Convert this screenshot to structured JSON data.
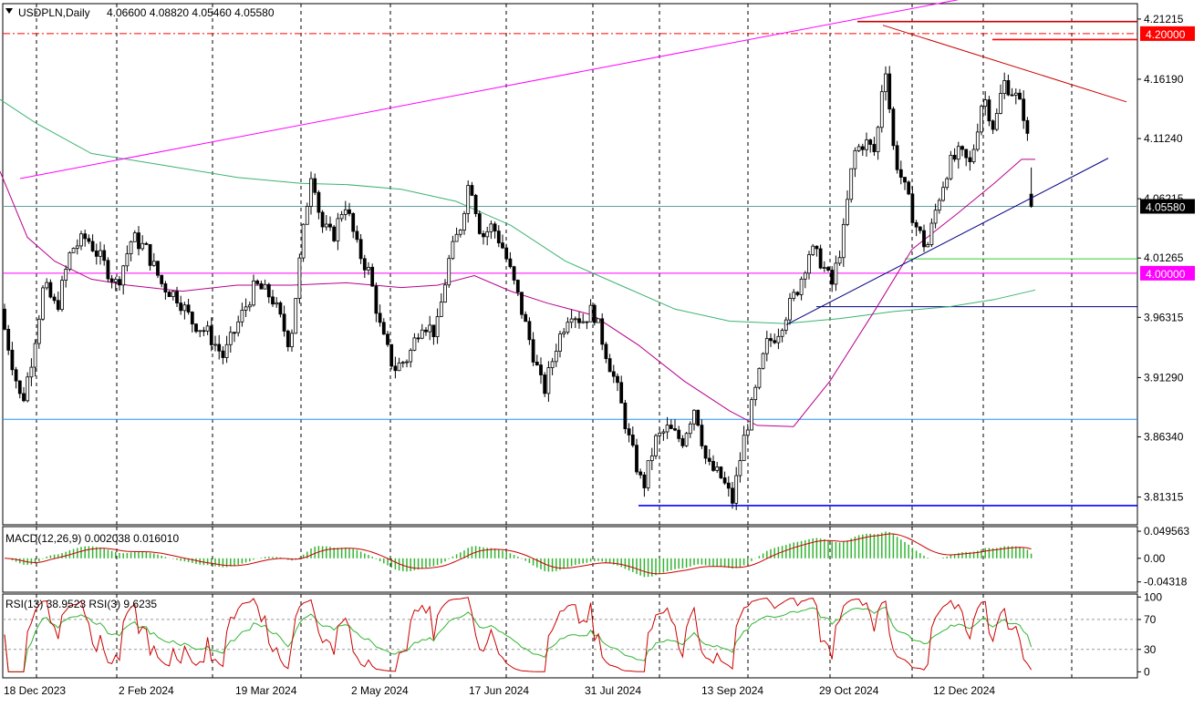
{
  "header": {
    "symbol_label": "USDPLN,Daily",
    "ohlc": "4.06600 4.08820 4.05460 4.05580"
  },
  "chart_data": {
    "type": "candlestick",
    "title": "USDPLN,Daily",
    "open": 4.066,
    "high": 4.0882,
    "low": 4.0546,
    "close": 4.0558,
    "price_axis": {
      "ylim": [
        3.79,
        4.225
      ],
      "ticks": [
        "4.21215",
        "4.16190",
        "4.11240",
        "4.06215",
        "4.01265",
        "3.96315",
        "3.91290",
        "3.86340",
        "3.81315"
      ],
      "tick_values": [
        4.21215,
        4.1619,
        4.1124,
        4.06215,
        4.01265,
        3.96315,
        3.9129,
        3.8634,
        3.81315
      ]
    },
    "price_labels": [
      {
        "text": "4.20000",
        "value": 4.2,
        "color": "#ff0000"
      },
      {
        "text": "4.05580",
        "value": 4.0558,
        "color": "#000000"
      },
      {
        "text": "4.00000",
        "value": 4.0,
        "color": "#ff00ff"
      }
    ],
    "x_labels": [
      "18 Dec 2023",
      "2 Feb 2024",
      "19 Mar 2024",
      "2 May 2024",
      "17 Jun 2024",
      "31 Jul 2024",
      "13 Sep 2024",
      "29 Oct 2024",
      "12 Dec 2024"
    ],
    "levels": [
      {
        "value": 4.2,
        "color": "#ff0000",
        "style": "dash-dot"
      },
      {
        "value": 4.21,
        "color": "#cc0000",
        "style": "solid"
      },
      {
        "value": 4.195,
        "color": "#ff0000",
        "style": "solid"
      },
      {
        "value": 4.0,
        "color": "#ff00ff",
        "style": "solid"
      },
      {
        "value": 4.0558,
        "color": "#5f9ea0",
        "style": "solid"
      },
      {
        "value": 4.012,
        "color": "#32cd32",
        "style": "solid"
      },
      {
        "value": 3.972,
        "color": "#000080",
        "style": "solid"
      },
      {
        "value": 3.878,
        "color": "#1e90ff",
        "style": "solid"
      },
      {
        "value": 3.806,
        "color": "#0000ff",
        "style": "solid"
      }
    ],
    "series_path": [
      [
        0,
        3.97
      ],
      [
        12,
        3.93
      ],
      [
        24,
        3.89
      ],
      [
        35,
        3.93
      ],
      [
        48,
        3.99
      ],
      [
        62,
        3.97
      ],
      [
        78,
        4.02
      ],
      [
        95,
        4.03
      ],
      [
        112,
        4.01
      ],
      [
        128,
        3.99
      ],
      [
        145,
        4.03
      ],
      [
        160,
        4.02
      ],
      [
        178,
        3.99
      ],
      [
        195,
        3.98
      ],
      [
        210,
        3.96
      ],
      [
        228,
        3.95
      ],
      [
        245,
        3.93
      ],
      [
        262,
        3.96
      ],
      [
        280,
        3.99
      ],
      [
        298,
        3.98
      ],
      [
        318,
        3.94
      ],
      [
        330,
        4.02
      ],
      [
        342,
        4.09
      ],
      [
        352,
        4.04
      ],
      [
        365,
        4.03
      ],
      [
        378,
        4.06
      ],
      [
        392,
        4.02
      ],
      [
        405,
        4.0
      ],
      [
        418,
        3.95
      ],
      [
        432,
        3.92
      ],
      [
        448,
        3.93
      ],
      [
        462,
        3.96
      ],
      [
        478,
        3.95
      ],
      [
        492,
        4.01
      ],
      [
        505,
        4.04
      ],
      [
        515,
        4.08
      ],
      [
        528,
        4.03
      ],
      [
        540,
        4.04
      ],
      [
        552,
        4.02
      ],
      [
        568,
        3.98
      ],
      [
        582,
        3.94
      ],
      [
        596,
        3.9
      ],
      [
        610,
        3.94
      ],
      [
        625,
        3.97
      ],
      [
        638,
        3.96
      ],
      [
        650,
        3.97
      ],
      [
        662,
        3.94
      ],
      [
        678,
        3.9
      ],
      [
        690,
        3.86
      ],
      [
        705,
        3.82
      ],
      [
        718,
        3.86
      ],
      [
        732,
        3.87
      ],
      [
        748,
        3.86
      ],
      [
        762,
        3.89
      ],
      [
        775,
        3.84
      ],
      [
        790,
        3.83
      ],
      [
        803,
        3.81
      ],
      [
        815,
        3.86
      ],
      [
        828,
        3.9
      ],
      [
        840,
        3.94
      ],
      [
        852,
        3.95
      ],
      [
        864,
        3.97
      ],
      [
        876,
        3.99
      ],
      [
        888,
        4.02
      ],
      [
        900,
        4.01
      ],
      [
        912,
        3.99
      ],
      [
        924,
        4.03
      ],
      [
        936,
        4.1
      ],
      [
        948,
        4.11
      ],
      [
        960,
        4.1
      ],
      [
        970,
        4.18
      ],
      [
        980,
        4.1
      ],
      [
        992,
        4.07
      ],
      [
        1004,
        4.04
      ],
      [
        1016,
        4.02
      ],
      [
        1028,
        4.06
      ],
      [
        1040,
        4.09
      ],
      [
        1052,
        4.1
      ],
      [
        1064,
        4.09
      ],
      [
        1078,
        4.15
      ],
      [
        1090,
        4.12
      ],
      [
        1100,
        4.16
      ],
      [
        1112,
        4.15
      ],
      [
        1124,
        4.13
      ],
      [
        1134,
        4.0558
      ]
    ],
    "ma_green_path": [
      [
        0,
        4.145
      ],
      [
        40,
        4.125
      ],
      [
        100,
        4.1
      ],
      [
        180,
        4.09
      ],
      [
        260,
        4.08
      ],
      [
        330,
        4.075
      ],
      [
        380,
        4.074
      ],
      [
        440,
        4.07
      ],
      [
        500,
        4.06
      ],
      [
        560,
        4.04
      ],
      [
        620,
        4.01
      ],
      [
        680,
        3.99
      ],
      [
        740,
        3.97
      ],
      [
        800,
        3.96
      ],
      [
        860,
        3.958
      ],
      [
        920,
        3.962
      ],
      [
        980,
        3.968
      ],
      [
        1040,
        3.972
      ],
      [
        1090,
        3.978
      ],
      [
        1135,
        3.986
      ]
    ],
    "ma_magenta_path": [
      [
        0,
        4.085
      ],
      [
        30,
        4.03
      ],
      [
        60,
        4.01
      ],
      [
        100,
        3.995
      ],
      [
        140,
        3.99
      ],
      [
        200,
        3.985
      ],
      [
        260,
        3.99
      ],
      [
        320,
        3.99
      ],
      [
        380,
        3.992
      ],
      [
        440,
        3.988
      ],
      [
        480,
        3.99
      ],
      [
        520,
        3.998
      ],
      [
        560,
        3.985
      ],
      [
        600,
        3.975
      ],
      [
        650,
        3.965
      ],
      [
        700,
        3.94
      ],
      [
        750,
        3.91
      ],
      [
        800,
        3.885
      ],
      [
        830,
        3.873
      ],
      [
        870,
        3.872
      ],
      [
        910,
        3.91
      ],
      [
        960,
        3.97
      ],
      [
        1000,
        4.02
      ],
      [
        1050,
        4.05
      ],
      [
        1090,
        4.075
      ],
      [
        1120,
        4.095
      ],
      [
        1135,
        4.095
      ]
    ],
    "trendlines": [
      {
        "from": [
          22,
          4.079
        ],
        "to": [
          1090,
          4.234
        ],
        "color": "#ff00ff"
      },
      {
        "from": [
          968,
          4.207
        ],
        "to": [
          1235,
          4.143
        ],
        "color": "#cc0000"
      },
      {
        "from": [
          862,
          3.957
        ],
        "to": [
          1215,
          4.096
        ],
        "color": "#000080"
      }
    ],
    "macd": {
      "label": "MACD(12,26,9) 0.002038 0.016010",
      "ticks": [
        "0.049563",
        "0.00",
        "-0.04318"
      ],
      "tick_values": [
        0.049563,
        0.0,
        -0.04318
      ],
      "ylim": [
        -0.062,
        0.058
      ]
    },
    "rsi": {
      "label": "RSI(13) 38.9523 RSI(3) 9.6235",
      "ticks": [
        "100",
        "70",
        "30",
        "0"
      ],
      "tick_values": [
        100,
        70,
        30,
        0
      ],
      "ylim": [
        -8,
        104
      ]
    },
    "colors": {
      "bull": "#ffffff",
      "bear": "#000000",
      "macd_hist": "#32b432",
      "signal": "#cc0000",
      "rsi_fast": "#cc0000",
      "rsi_slow": "#32b432"
    }
  }
}
